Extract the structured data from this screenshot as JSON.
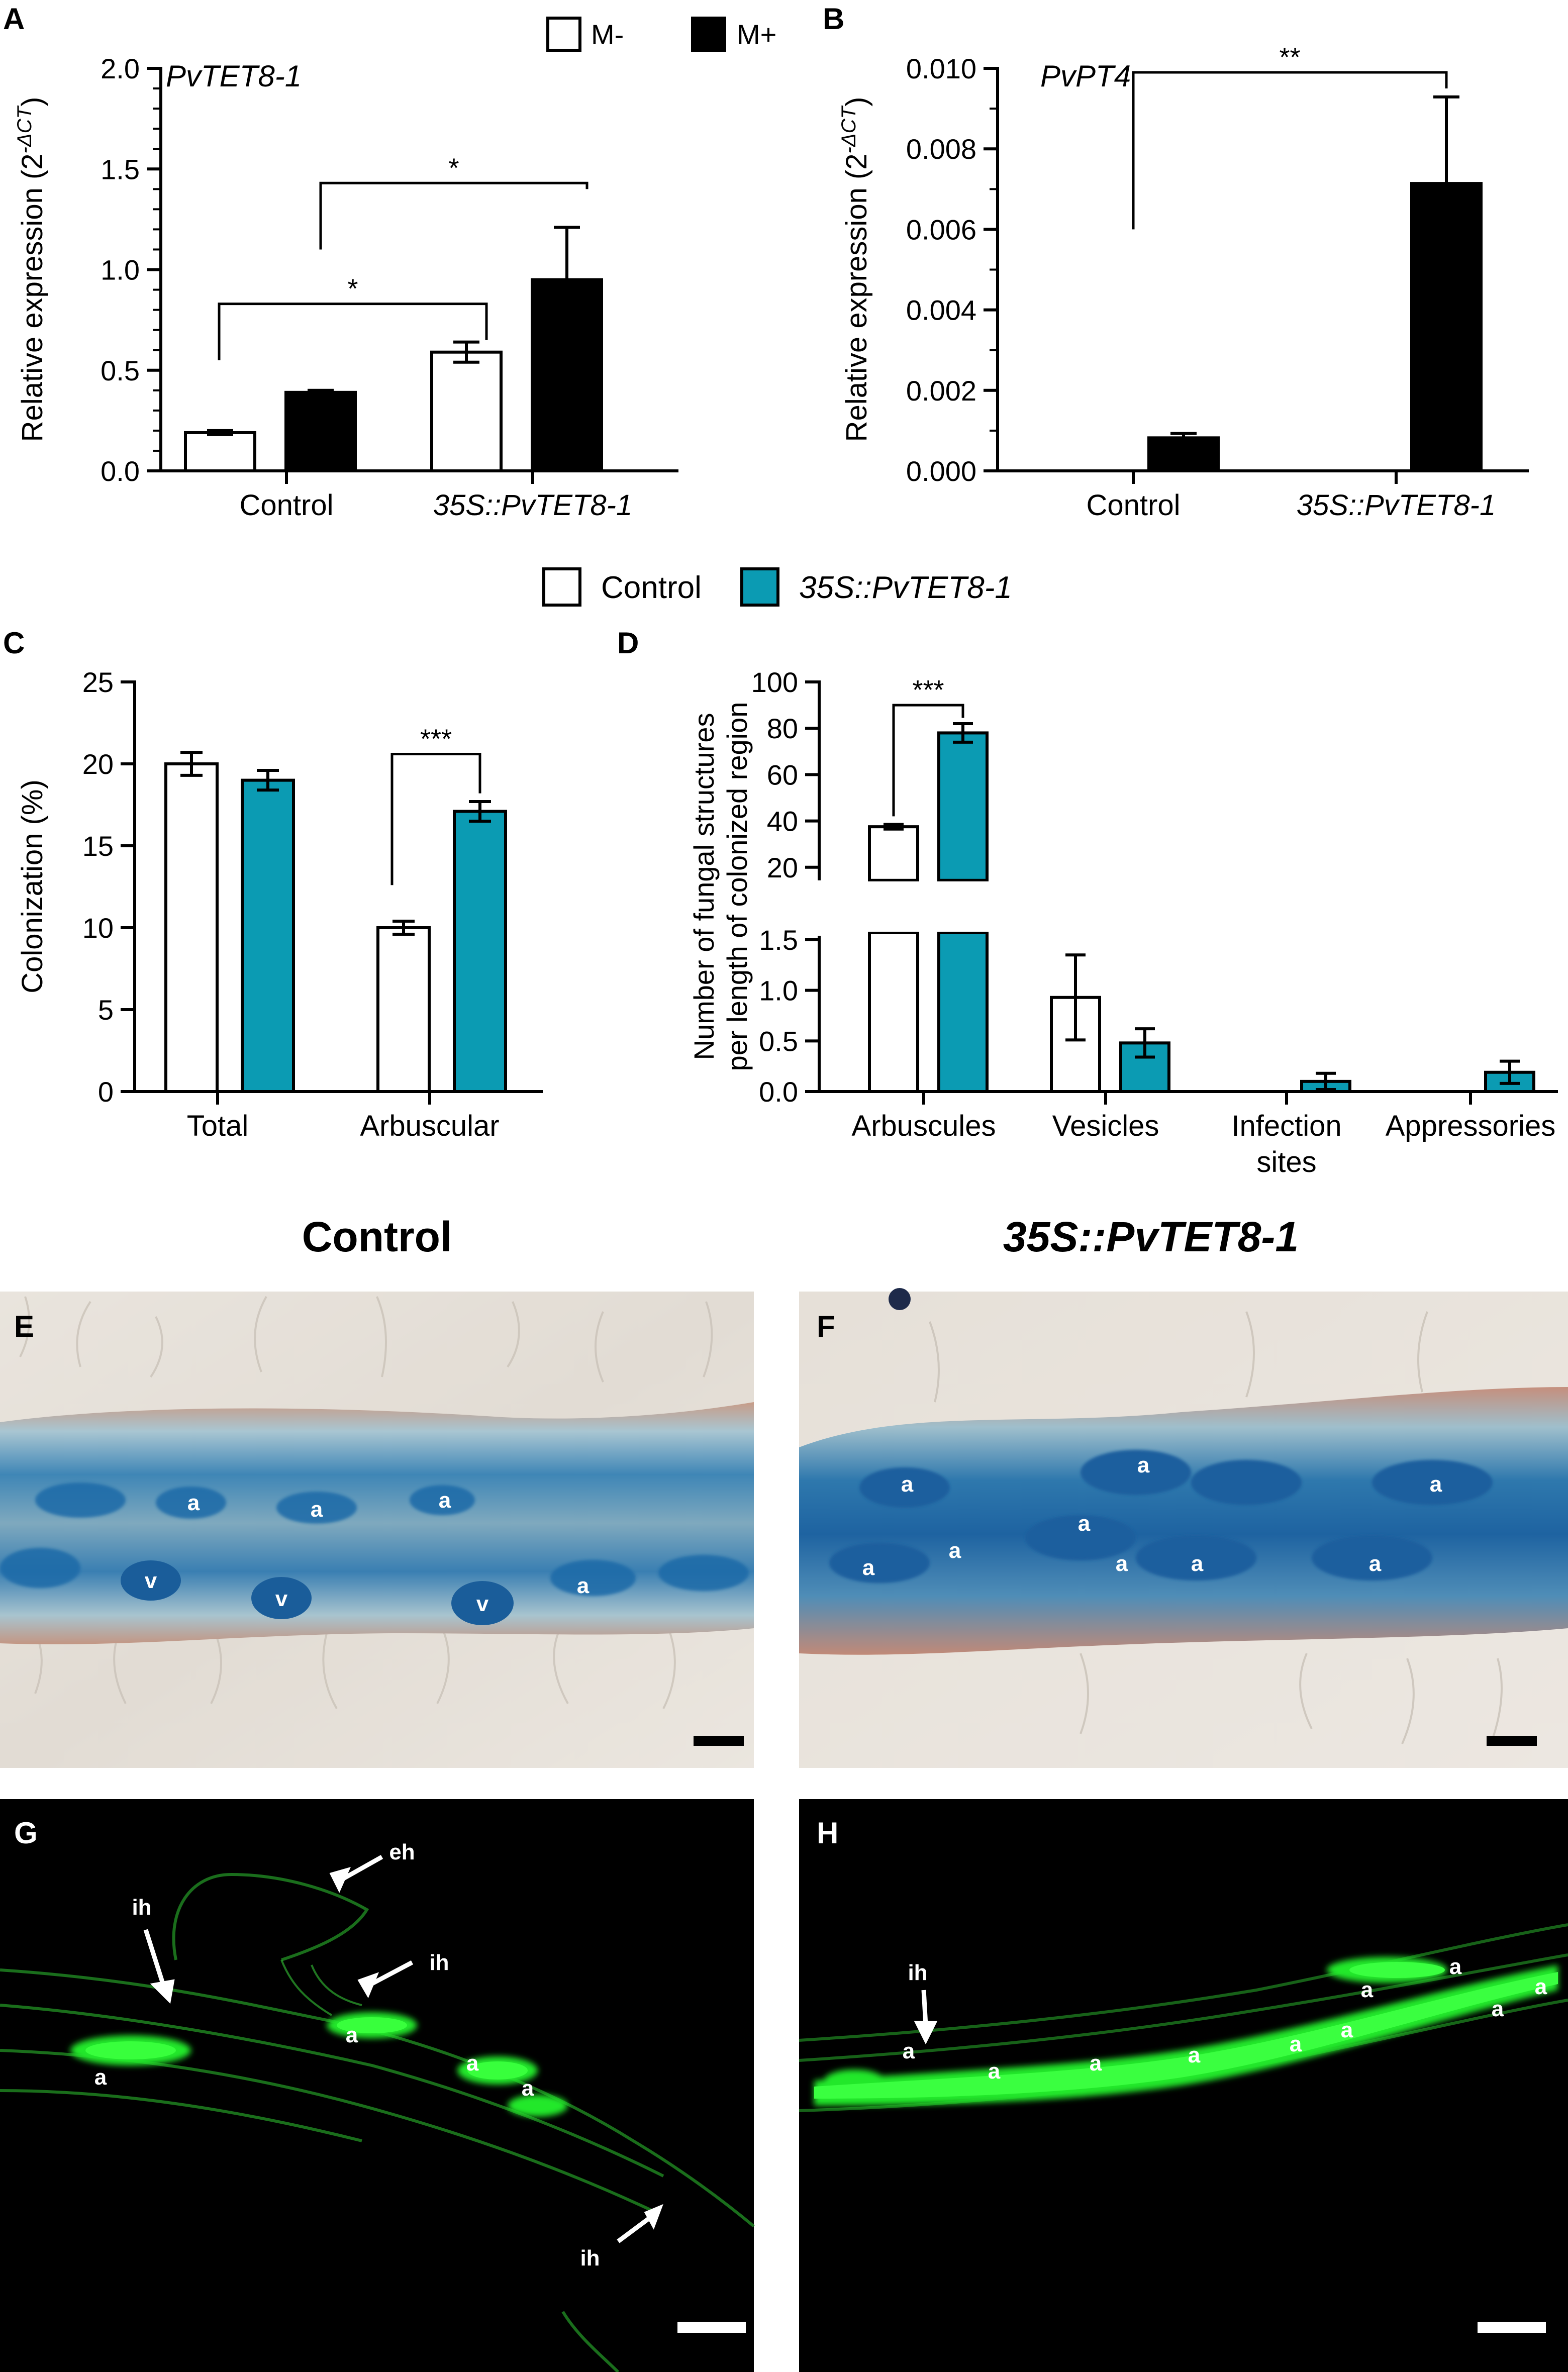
{
  "figure": {
    "panel_letters": [
      "A",
      "B",
      "C",
      "D",
      "E",
      "F",
      "G",
      "H"
    ],
    "column_titles": {
      "left": "Control",
      "right": "35S::PvTET8-1"
    }
  },
  "colors": {
    "m_minus": "#ffffff",
    "m_plus": "#000000",
    "control": "#ffffff",
    "overexpression": "#0b9bb3",
    "gfp_green": "#22e82a"
  },
  "legends": {
    "top": [
      {
        "label": "M-",
        "fill": "#ffffff"
      },
      {
        "label": "M+",
        "fill": "#000000"
      }
    ],
    "middle": [
      {
        "label": "Control",
        "fill": "#ffffff"
      },
      {
        "label": "35S::PvTET8-1",
        "fill": "#0b9bb3",
        "italic": true
      }
    ]
  },
  "chart_data": [
    {
      "panel": "A",
      "type": "bar",
      "title": "PvTET8-1",
      "ylabel": "Relative expression (2",
      "ylabel_sup": "-ΔCT",
      "ylabel_close": ")",
      "ylim": [
        0,
        2.0
      ],
      "yticks": [
        0.0,
        0.5,
        1.0,
        1.5,
        2.0
      ],
      "ytick_labels": [
        "0.0",
        "0.5",
        "1.0",
        "1.5",
        "2.0"
      ],
      "categories": [
        "Control",
        "35S::PvTET8-1"
      ],
      "series": [
        {
          "name": "M-",
          "values": [
            0.19,
            0.59
          ],
          "errors": [
            0.01,
            0.05
          ]
        },
        {
          "name": "M+",
          "values": [
            0.39,
            0.95
          ],
          "errors": [
            0.01,
            0.26
          ]
        }
      ],
      "significance": [
        {
          "label": "*",
          "from": [
            0,
            0
          ],
          "to": [
            1,
            0
          ]
        },
        {
          "label": "*",
          "from": [
            0,
            1
          ],
          "to": [
            1,
            1
          ]
        }
      ],
      "legend_position": "top"
    },
    {
      "panel": "B",
      "type": "bar",
      "title": "PvPT4",
      "ylabel": "Relative expression (2",
      "ylabel_sup": "-ΔCT",
      "ylabel_close": ")",
      "ylim": [
        0,
        0.01
      ],
      "yticks": [
        0.0,
        0.002,
        0.004,
        0.006,
        0.008,
        0.01
      ],
      "ytick_labels": [
        "0.000",
        "0.002",
        "0.004",
        "0.006",
        "0.008",
        "0.010"
      ],
      "categories": [
        "Control",
        "35S::PvTET8-1"
      ],
      "series": [
        {
          "name": "M+",
          "values": [
            0.00082,
            0.00714
          ],
          "errors": [
            0.00011,
            0.00215
          ]
        }
      ],
      "significance": [
        {
          "label": "**",
          "from": [
            0,
            0
          ],
          "to": [
            1,
            0
          ]
        }
      ]
    },
    {
      "panel": "C",
      "type": "bar",
      "ylabel": "Colonization (%)",
      "ylim": [
        0,
        25
      ],
      "yticks": [
        0,
        5,
        10,
        15,
        20,
        25
      ],
      "ytick_labels": [
        "0",
        "5",
        "10",
        "15",
        "20",
        "25"
      ],
      "categories": [
        "Total",
        "Arbuscular"
      ],
      "series": [
        {
          "name": "Control",
          "values": [
            20.0,
            10.0
          ],
          "errors": [
            0.7,
            0.4
          ]
        },
        {
          "name": "35S::PvTET8-1",
          "values": [
            19.0,
            17.1
          ],
          "errors": [
            0.6,
            0.6
          ]
        }
      ],
      "significance": [
        {
          "label": "***",
          "from": [
            1,
            0
          ],
          "to": [
            1,
            1
          ]
        }
      ],
      "legend_position": "top"
    },
    {
      "panel": "D",
      "type": "bar",
      "ylabel_lines": [
        "Number of fungal structures",
        "per length of colonized region"
      ],
      "axis_break": true,
      "lower_ylim": [
        0,
        1.5
      ],
      "lower_yticks": [
        0.0,
        0.5,
        1.0,
        1.5
      ],
      "lower_ytick_labels": [
        "0.0",
        "0.5",
        "1.0",
        "1.5"
      ],
      "upper_ylim": [
        0,
        100
      ],
      "upper_yticks": [
        20,
        40,
        60,
        80,
        100
      ],
      "upper_ytick_labels": [
        "20",
        "40",
        "60",
        "80",
        "100"
      ],
      "categories": [
        "Arbuscules",
        "Vesicles",
        "Infection sites",
        "Appressories"
      ],
      "category_lines": [
        [
          "Arbuscules"
        ],
        [
          "Vesicles"
        ],
        [
          "Infection",
          "sites"
        ],
        [
          "Appressories"
        ]
      ],
      "series": [
        {
          "name": "Control",
          "values": [
            37.5,
            0.93,
            0,
            0
          ],
          "errors": [
            1.0,
            0.42,
            0,
            0
          ]
        },
        {
          "name": "35S::PvTET8-1",
          "values": [
            78.0,
            0.48,
            0.1,
            0.19
          ],
          "errors": [
            4.0,
            0.14,
            0.08,
            0.11
          ]
        }
      ],
      "significance": [
        {
          "label": "***",
          "from": [
            0,
            0
          ],
          "to": [
            0,
            1
          ]
        }
      ]
    }
  ],
  "micrographs": {
    "E": {
      "labels": [
        "a",
        "a",
        "a",
        "a",
        "v",
        "v",
        "v"
      ]
    },
    "F": {
      "labels": [
        "a",
        "a",
        "a",
        "a",
        "a",
        "a",
        "a",
        "a",
        "a"
      ]
    },
    "G": {
      "labels": [
        "ih",
        "eh",
        "ih",
        "a",
        "a",
        "a",
        "a",
        "ih"
      ]
    },
    "H": {
      "labels": [
        "ih",
        "a",
        "a",
        "a",
        "a",
        "a",
        "a",
        "a",
        "a",
        "a",
        "a"
      ]
    }
  }
}
